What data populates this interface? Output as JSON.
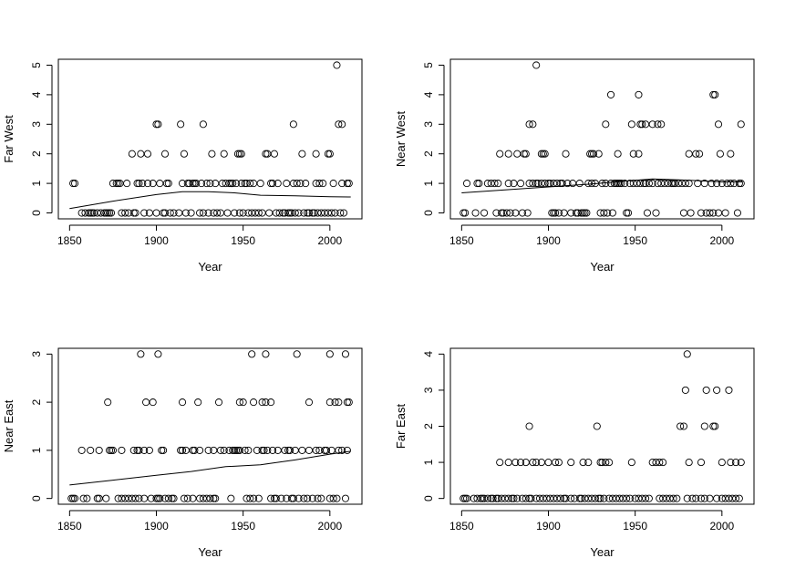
{
  "chart_data": [
    {
      "type": "scatter",
      "title": "",
      "xlabel": "Year",
      "ylabel": "Far West",
      "xlim": [
        1850,
        2012
      ],
      "ylim": [
        0,
        5
      ],
      "xticks": [
        "1850",
        "1900",
        "1950",
        "2000"
      ],
      "yticks": [
        "0",
        "1",
        "2",
        "3",
        "4",
        "5"
      ],
      "points": {
        "0": [
          1857,
          1859,
          1861,
          1862,
          1863,
          1864,
          1866,
          1868,
          1870,
          1871,
          1872,
          1873,
          1874,
          1880,
          1882,
          1884,
          1887,
          1888,
          1893,
          1896,
          1900,
          1904,
          1905,
          1908,
          1910,
          1913,
          1917,
          1920,
          1925,
          1927,
          1930,
          1933,
          1935,
          1937,
          1941,
          1945,
          1948,
          1950,
          1953,
          1955,
          1957,
          1959,
          1961,
          1965,
          1969,
          1971,
          1973,
          1974,
          1976,
          1977,
          1978,
          1980,
          1982,
          1985,
          1987,
          1988,
          1990,
          1991,
          1993,
          1995,
          1997,
          1999,
          2001,
          2003,
          2006,
          2008
        ],
        "1": [
          1852,
          1853,
          1875,
          1877,
          1878,
          1879,
          1883,
          1889,
          1890,
          1892,
          1895,
          1898,
          1902,
          1906,
          1907,
          1915,
          1918,
          1919,
          1921,
          1922,
          1923,
          1926,
          1929,
          1931,
          1934,
          1938,
          1940,
          1942,
          1943,
          1944,
          1946,
          1949,
          1951,
          1952,
          1954,
          1956,
          1960,
          1966,
          1967,
          1970,
          1975,
          1979,
          1981,
          1983,
          1986,
          1992,
          1994,
          1996,
          2002,
          2007,
          2010,
          2011
        ],
        "2": [
          1886,
          1891,
          1895,
          1905,
          1916,
          1932,
          1939,
          1947,
          1948,
          1949,
          1963,
          1964,
          1968,
          1984,
          1992,
          1999,
          2000
        ],
        "3": [
          1900,
          1901,
          1914,
          1927,
          1979,
          2005,
          2007
        ],
        "5": [
          2004
        ]
      },
      "smooth": {
        "x": [
          1850,
          1875,
          1900,
          1915,
          1930,
          1945,
          1960,
          1980,
          2000,
          2012
        ],
        "y": [
          0.15,
          0.4,
          0.62,
          0.72,
          0.72,
          0.68,
          0.6,
          0.58,
          0.55,
          0.54
        ]
      }
    },
    {
      "type": "scatter",
      "title": "",
      "xlabel": "Year",
      "ylabel": "Near West",
      "xlim": [
        1850,
        2012
      ],
      "ylim": [
        0,
        5
      ],
      "xticks": [
        "1850",
        "1900",
        "1950",
        "2000"
      ],
      "yticks": [
        "0",
        "1",
        "2",
        "3",
        "4",
        "5"
      ],
      "points": {
        "0": [
          1851,
          1852,
          1858,
          1863,
          1870,
          1873,
          1874,
          1876,
          1878,
          1881,
          1885,
          1888,
          1902,
          1903,
          1904,
          1906,
          1909,
          1913,
          1916,
          1917,
          1919,
          1920,
          1921,
          1922,
          1930,
          1932,
          1934,
          1937,
          1945,
          1946,
          1957,
          1962,
          1978,
          1982,
          1988,
          1991,
          1993,
          1995,
          1998,
          2002,
          2009
        ],
        "1": [
          1853,
          1859,
          1860,
          1865,
          1867,
          1869,
          1871,
          1877,
          1880,
          1884,
          1889,
          1891,
          1893,
          1894,
          1896,
          1898,
          1900,
          1901,
          1903,
          1905,
          1907,
          1908,
          1911,
          1914,
          1918,
          1923,
          1925,
          1927,
          1931,
          1933,
          1936,
          1938,
          1939,
          1940,
          1941,
          1942,
          1944,
          1947,
          1949,
          1951,
          1953,
          1955,
          1956,
          1958,
          1960,
          1963,
          1965,
          1967,
          1969,
          1971,
          1972,
          1973,
          1975,
          1977,
          1979,
          1981,
          1986,
          1990,
          1994,
          1997,
          2000,
          2003,
          2005,
          2007,
          2010,
          2011
        ],
        "2": [
          1872,
          1877,
          1882,
          1886,
          1887,
          1896,
          1897,
          1898,
          1910,
          1924,
          1925,
          1926,
          1929,
          1940,
          1949,
          1952,
          1981,
          1985,
          1987,
          1999,
          2005
        ],
        "3": [
          1889,
          1891,
          1933,
          1948,
          1953,
          1954,
          1956,
          1960,
          1963,
          1965,
          1998,
          2011
        ],
        "4": [
          1936,
          1952,
          1995,
          1996
        ],
        "5": [
          1893
        ]
      },
      "smooth": {
        "x": [
          1850,
          1875,
          1900,
          1925,
          1945,
          1960,
          1975,
          1990,
          2000,
          2012
        ],
        "y": [
          0.68,
          0.78,
          0.88,
          0.98,
          1.08,
          1.15,
          1.12,
          1.08,
          1.05,
          1.05
        ]
      }
    },
    {
      "type": "scatter",
      "title": "",
      "xlabel": "Year",
      "ylabel": "Near East",
      "xlim": [
        1850,
        2012
      ],
      "ylim": [
        0,
        3
      ],
      "xticks": [
        "1850",
        "1900",
        "1950",
        "2000"
      ],
      "yticks": [
        "0",
        "1",
        "2",
        "3"
      ],
      "points": {
        "0": [
          1851,
          1852,
          1853,
          1858,
          1860,
          1866,
          1867,
          1871,
          1878,
          1880,
          1882,
          1884,
          1886,
          1888,
          1890,
          1893,
          1897,
          1900,
          1901,
          1902,
          1905,
          1907,
          1909,
          1910,
          1916,
          1918,
          1921,
          1925,
          1927,
          1929,
          1931,
          1933,
          1934,
          1943,
          1952,
          1954,
          1956,
          1959,
          1966,
          1968,
          1969,
          1972,
          1975,
          1978,
          1979,
          1982,
          1985,
          1987,
          1990,
          1993,
          1995,
          2000,
          2002,
          2004,
          2009
        ],
        "1": [
          1857,
          1862,
          1867,
          1873,
          1874,
          1875,
          1880,
          1887,
          1889,
          1890,
          1893,
          1896,
          1903,
          1904,
          1914,
          1915,
          1917,
          1921,
          1922,
          1925,
          1930,
          1933,
          1937,
          1939,
          1942,
          1944,
          1945,
          1946,
          1947,
          1948,
          1951,
          1953,
          1958,
          1961,
          1962,
          1964,
          1967,
          1970,
          1974,
          1976,
          1977,
          1980,
          1984,
          1988,
          1992,
          1994,
          1997,
          1998,
          2001,
          2005,
          2007,
          2010
        ],
        "2": [
          1872,
          1894,
          1898,
          1915,
          1924,
          1936,
          1948,
          1950,
          1956,
          1961,
          1963,
          1966,
          1988,
          2000,
          2003,
          2005,
          2010,
          2011
        ],
        "3": [
          1891,
          1901,
          1955,
          1963,
          1981,
          2000,
          2009
        ]
      },
      "smooth": {
        "x": [
          1850,
          1875,
          1900,
          1920,
          1940,
          1960,
          1980,
          2000,
          2012
        ],
        "y": [
          0.28,
          0.38,
          0.48,
          0.56,
          0.66,
          0.7,
          0.8,
          0.92,
          0.98
        ]
      }
    },
    {
      "type": "scatter",
      "title": "",
      "xlabel": "Year",
      "ylabel": "Far East",
      "xlim": [
        1850,
        2012
      ],
      "ylim": [
        0,
        4
      ],
      "xticks": [
        "1850",
        "1900",
        "1950",
        "2000"
      ],
      "yticks": [
        "0",
        "1",
        "2",
        "3",
        "4"
      ],
      "points": {
        "0": [
          1851,
          1852,
          1853,
          1857,
          1859,
          1861,
          1862,
          1863,
          1865,
          1867,
          1868,
          1870,
          1871,
          1873,
          1875,
          1877,
          1879,
          1880,
          1882,
          1885,
          1887,
          1889,
          1890,
          1893,
          1895,
          1897,
          1899,
          1901,
          1903,
          1905,
          1907,
          1909,
          1910,
          1913,
          1915,
          1918,
          1919,
          1921,
          1923,
          1925,
          1927,
          1929,
          1930,
          1932,
          1935,
          1937,
          1939,
          1941,
          1943,
          1945,
          1947,
          1950,
          1952,
          1954,
          1956,
          1958,
          1964,
          1966,
          1968,
          1970,
          1972,
          1974,
          1980,
          1983,
          1985,
          1988,
          1990,
          1993,
          1997,
          2000,
          2002,
          2004,
          2006,
          2008,
          2010
        ],
        "1": [
          1872,
          1877,
          1881,
          1884,
          1887,
          1891,
          1893,
          1896,
          1900,
          1904,
          1906,
          1913,
          1920,
          1923,
          1930,
          1931,
          1933,
          1935,
          1948,
          1960,
          1962,
          1964,
          1966,
          1981,
          1988,
          2000,
          2005,
          2008,
          2011
        ],
        "2": [
          1889,
          1928,
          1976,
          1978,
          1990,
          1995,
          1996
        ],
        "3": [
          1979,
          1991,
          1997,
          2004
        ],
        "4": [
          1980
        ]
      },
      "smooth": null
    }
  ]
}
